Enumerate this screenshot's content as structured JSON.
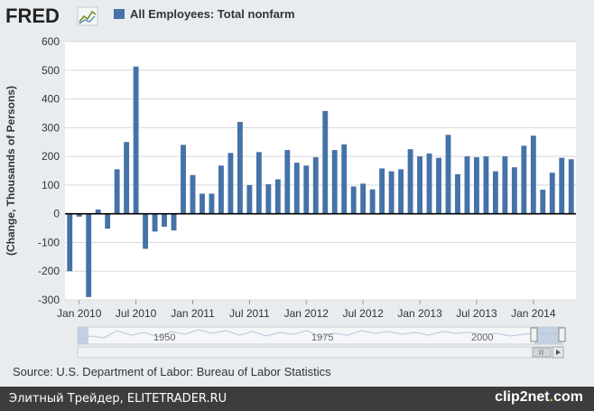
{
  "logo": "FRED",
  "legend": {
    "label": "All Employees: Total nonfarm",
    "color": "#4572a7"
  },
  "source": "Source: U.S. Department of Labor: Bureau of Labor Statistics",
  "watermark": {
    "left": "Элитный Трейдер, ELITETRADER.RU",
    "right_main": "clip2net",
    "right_dot": ".",
    "right_tail": "com"
  },
  "navigator": {
    "labels": [
      "1950",
      "1975",
      "2000"
    ]
  },
  "chart_data": {
    "type": "bar",
    "ylabel": "(Change, Thousands of Persons)",
    "ylim": [
      -300,
      600
    ],
    "yticks": [
      -300,
      -200,
      -100,
      0,
      100,
      200,
      300,
      400,
      500,
      600
    ],
    "grid": true,
    "series": [
      {
        "name": "All Employees: Total nonfarm",
        "color": "#4572a7",
        "values": [
          -200,
          -10,
          -290,
          15,
          -52,
          155,
          250,
          513,
          -122,
          -62,
          -45,
          -58,
          240,
          135,
          70,
          70,
          168,
          212,
          320,
          100,
          215,
          103,
          120,
          222,
          178,
          168,
          197,
          358,
          222,
          242,
          95,
          105,
          85,
          158,
          148,
          155,
          225,
          200,
          210,
          195,
          275,
          138,
          200,
          197,
          200,
          148,
          200,
          162,
          237,
          272,
          84,
          143,
          195,
          190
        ]
      }
    ],
    "xticks": [
      {
        "label": "Jan 2010",
        "index": 1
      },
      {
        "label": "Jul 2010",
        "index": 7
      },
      {
        "label": "Jan 2011",
        "index": 13
      },
      {
        "label": "Jul 2011",
        "index": 19
      },
      {
        "label": "Jan 2012",
        "index": 25
      },
      {
        "label": "Jul 2012",
        "index": 31
      },
      {
        "label": "Jan 2013",
        "index": 37
      },
      {
        "label": "Jul 2013",
        "index": 43
      },
      {
        "label": "Jan 2014",
        "index": 49
      }
    ]
  }
}
